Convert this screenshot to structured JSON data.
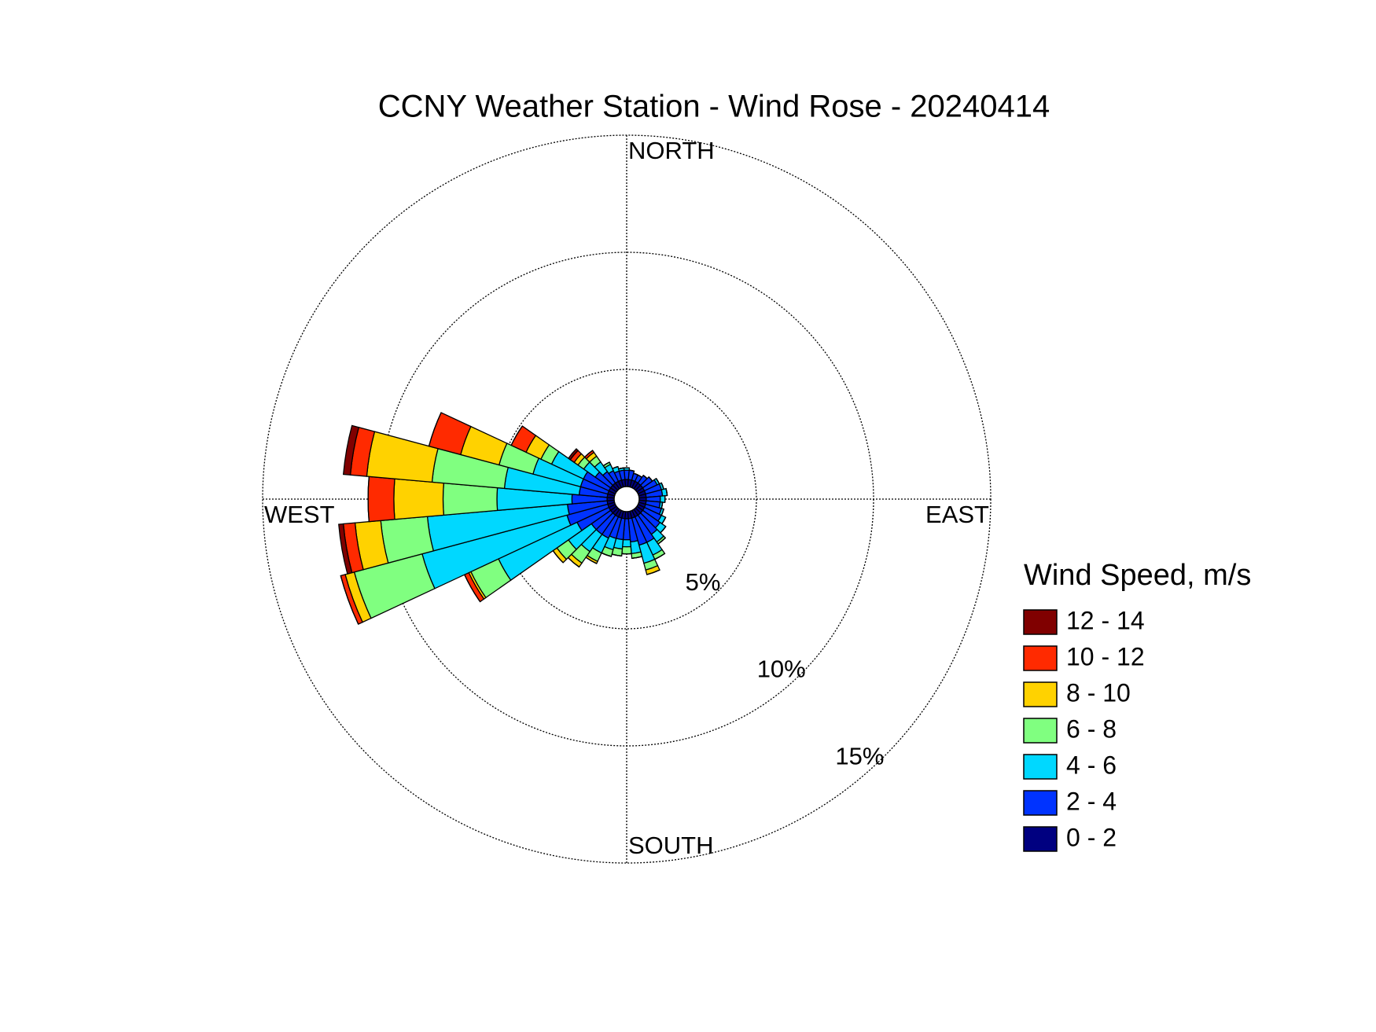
{
  "chart_data": {
    "type": "windrose",
    "title": "CCNY Weather Station - Wind Rose - 20240414",
    "direction_labels": [
      "NORTH",
      "EAST",
      "SOUTH",
      "WEST"
    ],
    "categories": [
      null,
      null,
      null,
      null,
      null,
      null,
      null,
      null,
      null,
      null,
      null,
      null,
      null,
      null,
      null,
      null,
      null,
      null,
      null,
      null,
      null,
      null,
      null,
      null,
      null,
      null,
      null,
      null,
      null,
      null,
      null,
      null,
      null,
      null,
      null,
      null
    ],
    "rlim": [
      0,
      15
    ],
    "rticks": [
      {
        "value": 5,
        "label": "5%"
      },
      {
        "value": 10,
        "label": "10%"
      },
      {
        "value": 15,
        "label": "15%"
      }
    ],
    "grid": true,
    "legend_title": "Wind Speed, m/s",
    "legend": "right",
    "series": [
      {
        "name": "0 - 2",
        "color": "#000080",
        "values": [
          0.3,
          0.3,
          0.3,
          0.3,
          0.3,
          0.3,
          0.3,
          0.3,
          0.3,
          0.3,
          0.3,
          0.3,
          0.3,
          0.3,
          0.3,
          0.3,
          0.3,
          0.3,
          0.3,
          0.3,
          0.3,
          0.3,
          0.3,
          0.3,
          0.3,
          0.3,
          0.3,
          0.3,
          0.3,
          0.3,
          0.3,
          0.3,
          0.3,
          0.3,
          0.3,
          0.3
        ]
      },
      {
        "name": "2 - 4",
        "color": "#0033ff",
        "values": [
          0.4,
          0.4,
          0.3,
          0.3,
          0.4,
          0.5,
          0.6,
          0.7,
          0.7,
          0.6,
          0.6,
          0.7,
          0.8,
          0.9,
          1.0,
          1.2,
          1.2,
          1.0,
          0.9,
          0.9,
          0.9,
          1.0,
          1.0,
          1.0,
          1.5,
          1.8,
          1.7,
          1.5,
          1.2,
          1.2,
          1.2,
          0.8,
          0.6,
          0.5,
          0.4,
          0.4
        ]
      },
      {
        "name": "4 - 6",
        "color": "#00d8ff",
        "values": [
          0.1,
          0,
          0,
          0,
          0,
          0,
          0.1,
          0.1,
          0.2,
          0.2,
          0.1,
          0.1,
          0.2,
          0.3,
          0.4,
          0.6,
          0.8,
          0.5,
          0.3,
          0.4,
          0.5,
          0.7,
          0.9,
          1.2,
          3.7,
          6.4,
          6.0,
          3.2,
          3.2,
          2.1,
          1.5,
          0.6,
          0.5,
          0.3,
          0.2,
          0.1
        ]
      },
      {
        "name": "6 - 8",
        "color": "#80ff80",
        "values": [
          0,
          0,
          0,
          0,
          0,
          0,
          0,
          0,
          0,
          0,
          0,
          0,
          0,
          0,
          0.1,
          0.2,
          0.3,
          0.2,
          0.3,
          0.3,
          0.3,
          0.4,
          0.6,
          0.6,
          1.3,
          3.0,
          2.0,
          2.3,
          3.1,
          1.5,
          0.5,
          0.3,
          0.3,
          0.1,
          0,
          0
        ]
      },
      {
        "name": "8 - 10",
        "color": "#ffd200",
        "values": [
          0,
          0,
          0,
          0,
          0,
          0,
          0,
          0,
          0,
          0,
          0,
          0,
          0,
          0,
          0,
          0,
          0.2,
          0,
          0,
          0,
          0,
          0.1,
          0.2,
          0.2,
          0.1,
          0.4,
          1.1,
          2.1,
          2.8,
          1.7,
          0.7,
          0.2,
          0.2,
          0,
          0,
          0
        ]
      },
      {
        "name": "10 - 12",
        "color": "#ff2a00",
        "values": [
          0,
          0,
          0,
          0,
          0,
          0,
          0,
          0,
          0,
          0,
          0,
          0,
          0,
          0,
          0,
          0,
          0,
          0,
          0,
          0,
          0,
          0,
          0,
          0,
          0.2,
          0.2,
          0.5,
          1.1,
          0.7,
          1.4,
          0.7,
          0.2,
          0.1,
          0,
          0,
          0
        ]
      },
      {
        "name": "12 - 14",
        "color": "#800000",
        "values": [
          0,
          0,
          0,
          0,
          0,
          0,
          0,
          0,
          0,
          0,
          0,
          0,
          0,
          0,
          0,
          0,
          0,
          0,
          0,
          0,
          0,
          0,
          0,
          0,
          0,
          0,
          0.2,
          0,
          0.3,
          0,
          0,
          0.1,
          0,
          0,
          0,
          0
        ]
      }
    ]
  }
}
